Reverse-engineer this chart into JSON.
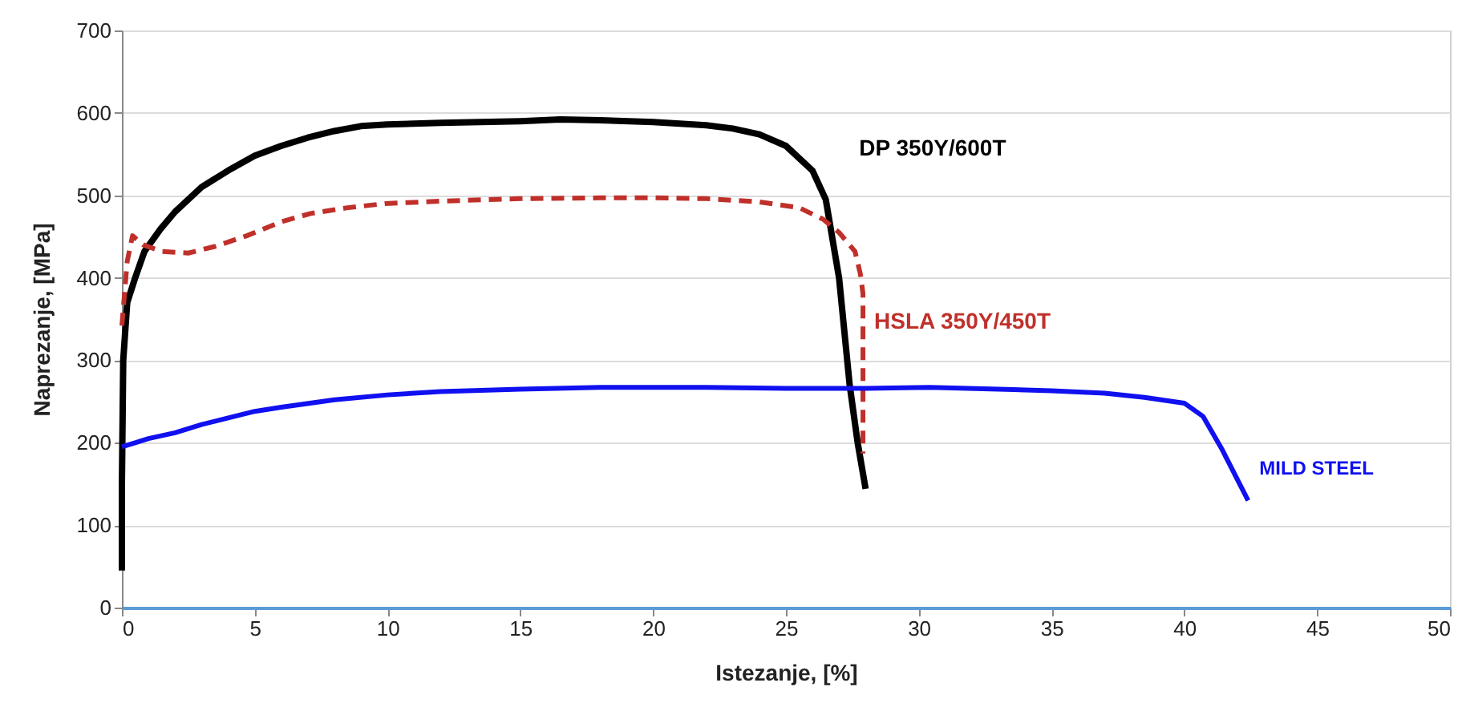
{
  "chart_data": {
    "type": "line",
    "xlabel": "Istezanje, [%]",
    "ylabel": "Naprezanje, [MPa]",
    "xlim": [
      0,
      50
    ],
    "xticks": [
      0,
      5,
      10,
      15,
      20,
      25,
      30,
      35,
      40,
      45,
      50
    ],
    "ylim": [
      0,
      700
    ],
    "yticks": [
      0,
      100,
      200,
      300,
      400,
      500,
      600,
      700
    ],
    "grid": "y",
    "marker": "none",
    "series": [
      {
        "name": "DP 350Y/600T",
        "color": "#000000",
        "line_style": "solid",
        "x": [
          0,
          0,
          0.05,
          0.2,
          0.5,
          0.85,
          1.45,
          2,
          3,
          4,
          5,
          6,
          7,
          8,
          9,
          10,
          12,
          15,
          16.5,
          18,
          20,
          22,
          23,
          24,
          25,
          26,
          26.5,
          27,
          27.4,
          27.7,
          28
        ],
        "values": [
          45,
          150,
          300,
          370,
          400,
          432,
          459,
          480,
          510,
          530,
          548,
          560,
          570,
          578,
          584,
          586,
          588,
          590,
          592,
          591,
          589,
          585,
          581,
          574,
          560,
          530,
          495,
          400,
          270,
          200,
          144
        ]
      },
      {
        "name": "HSLA 350Y/450T",
        "color": "#c0302a",
        "line_style": "dashed",
        "x": [
          0,
          0.2,
          0.4,
          0.8,
          1.5,
          2.5,
          3.5,
          4.7,
          6,
          7.1,
          8.5,
          9.9,
          12,
          15,
          18,
          20,
          22,
          24,
          25.5,
          26.4,
          27,
          27.6,
          27.8,
          27.9,
          27.9
        ],
        "values": [
          342,
          420,
          451,
          440,
          432,
          430,
          438,
          451,
          468,
          478,
          485,
          490,
          493,
          496,
          497,
          497,
          496,
          492,
          485,
          471,
          455,
          432,
          405,
          381,
          187
        ]
      },
      {
        "name": "MILD STEEL",
        "color": "#1010f0",
        "line_style": "solid",
        "x": [
          0,
          0.5,
          1,
          2,
          3,
          4,
          5,
          6,
          8,
          10,
          12,
          15,
          18,
          20,
          22,
          25,
          28,
          30.4,
          33,
          35,
          37,
          38.5,
          40,
          40.7,
          41.4,
          42.4
        ],
        "values": [
          195,
          200,
          205,
          212,
          222,
          230,
          238,
          243,
          252,
          258,
          262,
          265,
          267,
          267,
          267,
          266,
          266,
          267,
          265,
          263,
          260,
          255,
          248,
          232,
          193,
          130
        ]
      }
    ]
  }
}
